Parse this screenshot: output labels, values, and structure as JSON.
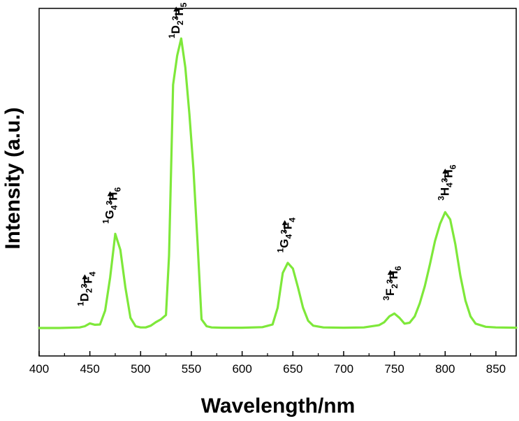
{
  "chart_data": {
    "type": "line",
    "title": "",
    "xlabel": "Wavelength/nm",
    "ylabel": "Intensity (a.u.)",
    "xlim": [
      400,
      870
    ],
    "ylim": [
      0,
      1.0
    ],
    "xticks": [
      400,
      450,
      500,
      550,
      600,
      650,
      700,
      750,
      800,
      850
    ],
    "yticks_shown": false,
    "grid": false,
    "legend": "none",
    "line_color": "#7ee83a",
    "series": [
      {
        "x": [
          400,
          420,
          440,
          445,
          450,
          455,
          460,
          465,
          470,
          475,
          480,
          485,
          490,
          495,
          500,
          505,
          510,
          515,
          520,
          525,
          528,
          532,
          536,
          540,
          544,
          548,
          552,
          556,
          560,
          565,
          570,
          580,
          600,
          620,
          630,
          635,
          640,
          645,
          650,
          655,
          660,
          665,
          670,
          680,
          700,
          720,
          735,
          740,
          745,
          750,
          755,
          760,
          765,
          770,
          775,
          780,
          785,
          790,
          795,
          800,
          805,
          810,
          815,
          820,
          825,
          830,
          840,
          850,
          870
        ],
        "y": [
          0.0,
          0.0,
          0.002,
          0.006,
          0.016,
          0.011,
          0.012,
          0.06,
          0.175,
          0.325,
          0.27,
          0.14,
          0.035,
          0.006,
          0.002,
          0.002,
          0.008,
          0.02,
          0.03,
          0.045,
          0.25,
          0.84,
          0.94,
          1.0,
          0.9,
          0.74,
          0.55,
          0.3,
          0.03,
          0.006,
          0.002,
          0.001,
          0.001,
          0.003,
          0.012,
          0.07,
          0.19,
          0.225,
          0.205,
          0.14,
          0.07,
          0.025,
          0.008,
          0.002,
          0.001,
          0.002,
          0.01,
          0.02,
          0.04,
          0.05,
          0.035,
          0.015,
          0.018,
          0.04,
          0.085,
          0.145,
          0.22,
          0.3,
          0.36,
          0.4,
          0.375,
          0.29,
          0.18,
          0.095,
          0.04,
          0.015,
          0.004,
          0.002,
          0.001
        ]
      }
    ],
    "annotations": [
      {
        "x": 445,
        "y": 0.075,
        "parts": [
          [
            "sup",
            "1"
          ],
          [
            "main",
            "D"
          ],
          [
            "sub",
            "2"
          ],
          [
            "arrow",
            ""
          ],
          [
            "sup",
            "3"
          ],
          [
            "main",
            "F"
          ],
          [
            "sub",
            "4"
          ]
        ]
      },
      {
        "x": 470,
        "y": 0.36,
        "parts": [
          [
            "sup",
            "1"
          ],
          [
            "main",
            "G"
          ],
          [
            "sub",
            "4"
          ],
          [
            "arrow",
            ""
          ],
          [
            "sup",
            "3"
          ],
          [
            "main",
            "H"
          ],
          [
            "sub",
            "6"
          ]
        ]
      },
      {
        "x": 535,
        "y": 1.0,
        "parts": [
          [
            "sup",
            "1"
          ],
          [
            "main",
            "D"
          ],
          [
            "sub",
            "2"
          ],
          [
            "arrow",
            ""
          ],
          [
            "sup",
            "3"
          ],
          [
            "main",
            "H"
          ],
          [
            "sub",
            "5"
          ]
        ]
      },
      {
        "x": 642,
        "y": 0.26,
        "parts": [
          [
            "sup",
            "1"
          ],
          [
            "main",
            "G"
          ],
          [
            "sub",
            "4"
          ],
          [
            "arrow",
            ""
          ],
          [
            "sup",
            "3"
          ],
          [
            "main",
            "F"
          ],
          [
            "sub",
            "4"
          ]
        ]
      },
      {
        "x": 746,
        "y": 0.095,
        "parts": [
          [
            "sup",
            "3"
          ],
          [
            "main",
            "F"
          ],
          [
            "sub",
            "2"
          ],
          [
            "arrow",
            ""
          ],
          [
            "sup",
            "3"
          ],
          [
            "main",
            "H"
          ],
          [
            "sub",
            "6"
          ]
        ]
      },
      {
        "x": 800,
        "y": 0.44,
        "parts": [
          [
            "sup",
            "3"
          ],
          [
            "main",
            "H"
          ],
          [
            "sub",
            "4"
          ],
          [
            "arrow",
            ""
          ],
          [
            "sup",
            "3"
          ],
          [
            "main",
            "H"
          ],
          [
            "sub",
            "6"
          ]
        ]
      }
    ]
  }
}
